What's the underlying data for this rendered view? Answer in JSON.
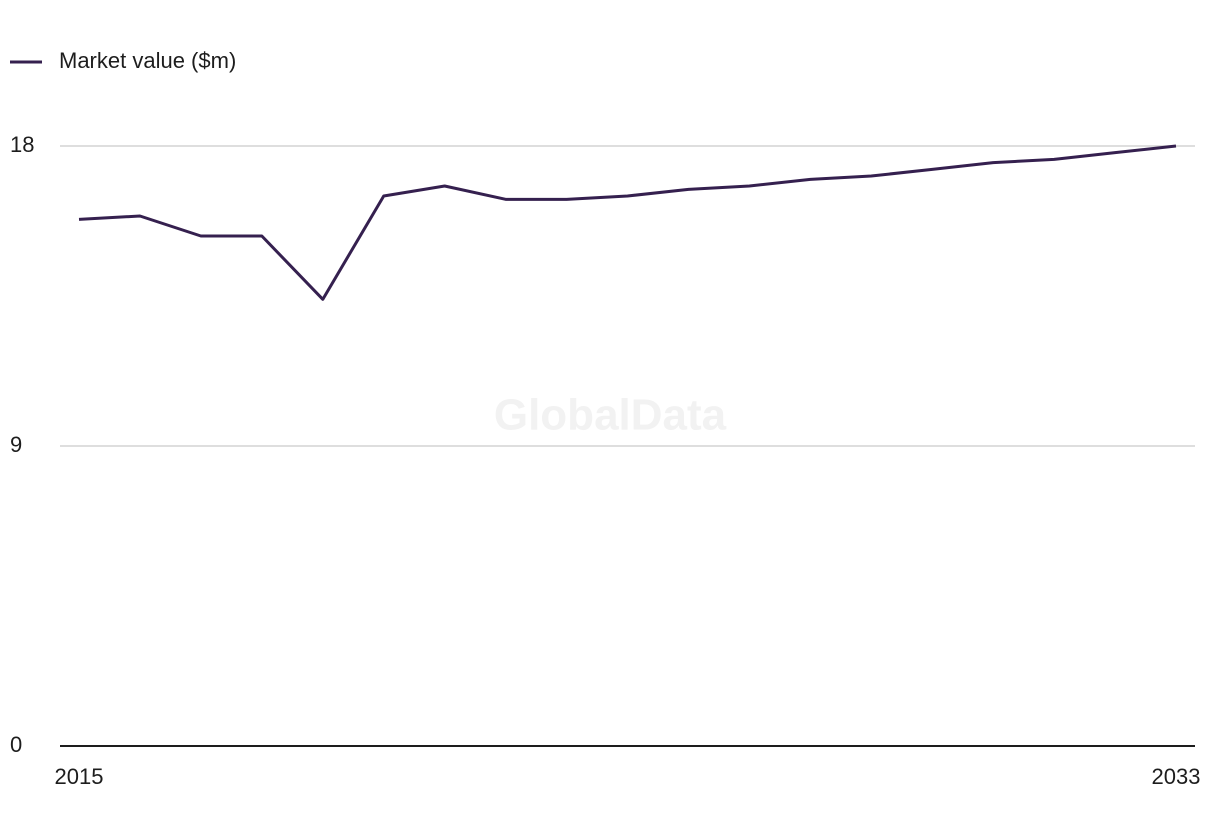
{
  "chart_data": {
    "type": "line",
    "watermark": "GlobalData",
    "x": [
      2015,
      2016,
      2017,
      2018,
      2019,
      2020,
      2021,
      2022,
      2023,
      2024,
      2025,
      2026,
      2027,
      2028,
      2029,
      2030,
      2031,
      2032,
      2033
    ],
    "series": [
      {
        "name": "Market value ($m)",
        "color": "#35204f",
        "values": [
          15.8,
          15.9,
          15.3,
          15.3,
          13.4,
          16.5,
          16.8,
          16.4,
          16.4,
          16.5,
          16.7,
          16.8,
          17.0,
          17.1,
          17.3,
          17.5,
          17.6,
          17.8,
          18.0
        ]
      }
    ],
    "xlim": [
      2015,
      2033
    ],
    "xticks": [
      2015,
      2033
    ],
    "ylim": [
      0,
      18
    ],
    "yticks": [
      0,
      9,
      18
    ],
    "grid": true,
    "legend": "top-left"
  }
}
